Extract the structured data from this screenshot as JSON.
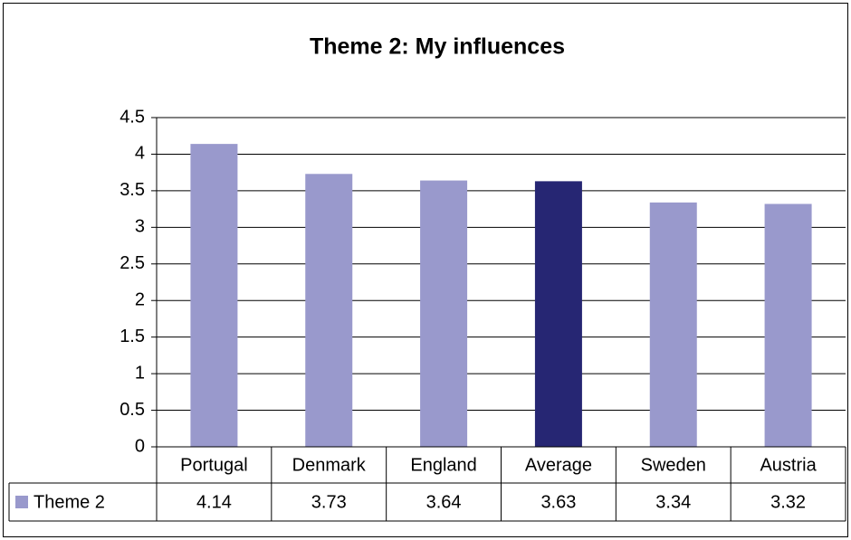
{
  "chart_data": {
    "type": "bar",
    "title": "Theme 2: My influences",
    "categories": [
      "Portugal",
      "Denmark",
      "England",
      "Average",
      "Sweden",
      "Austria"
    ],
    "series": [
      {
        "name": "Theme 2",
        "color": "#9999cc",
        "colors": [
          "#9999cc",
          "#9999cc",
          "#9999cc",
          "#262673",
          "#9999cc",
          "#9999cc"
        ],
        "values": [
          4.14,
          3.73,
          3.64,
          3.63,
          3.34,
          3.32
        ]
      }
    ],
    "ylim": [
      0,
      4.5
    ],
    "yticks": [
      0,
      0.5,
      1,
      1.5,
      2,
      2.5,
      3,
      3.5,
      4,
      4.5
    ],
    "grid": true,
    "data_table": true
  }
}
